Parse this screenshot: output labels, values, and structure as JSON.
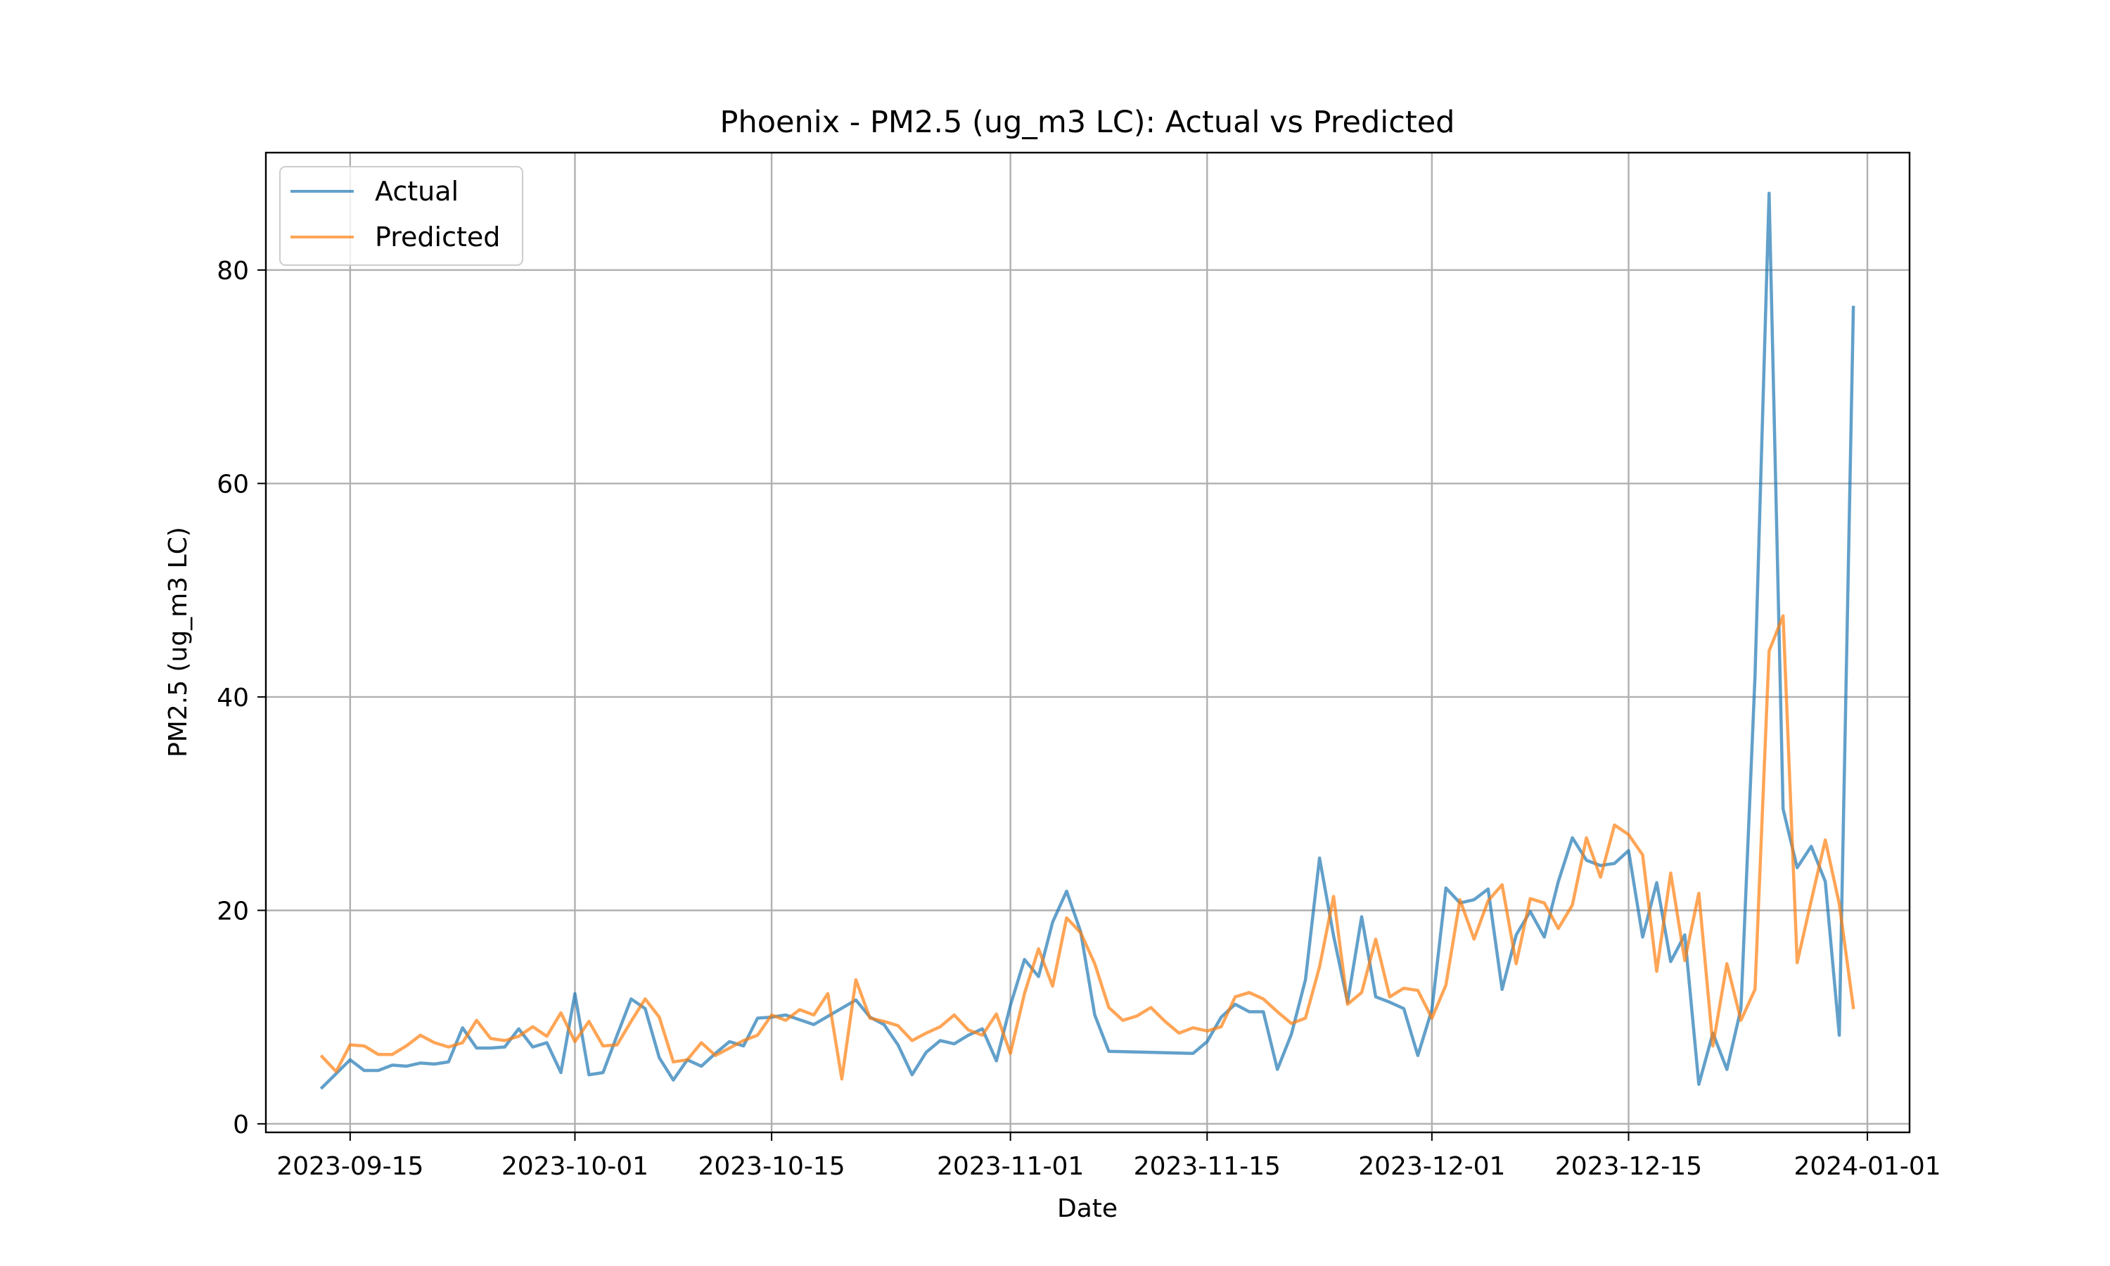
{
  "chart_data": {
    "type": "line",
    "title": "Phoenix - PM2.5 (ug_m3 LC): Actual vs Predicted",
    "xlabel": "Date",
    "ylabel": "PM2.5 (ug_m3 LC)",
    "xlim": [
      "2023-09-09",
      "2024-01-04"
    ],
    "ylim": [
      -0.8,
      91
    ],
    "x_ticks": [
      "2023-09-15",
      "2023-10-01",
      "2023-10-15",
      "2023-11-01",
      "2023-11-15",
      "2023-12-01",
      "2023-12-15",
      "2024-01-01"
    ],
    "y_ticks": [
      0,
      20,
      40,
      60,
      80
    ],
    "grid": true,
    "legend": "upper left",
    "series": [
      {
        "name": "Actual",
        "color": "#1f77b4",
        "points": [
          [
            "2023-09-13",
            3.4
          ],
          [
            "2023-09-14",
            4.7
          ],
          [
            "2023-09-15",
            6.0
          ],
          [
            "2023-09-16",
            5.0
          ],
          [
            "2023-09-17",
            5.0
          ],
          [
            "2023-09-18",
            5.5
          ],
          [
            "2023-09-19",
            5.4
          ],
          [
            "2023-09-20",
            5.7
          ],
          [
            "2023-09-21",
            5.6
          ],
          [
            "2023-09-22",
            5.8
          ],
          [
            "2023-09-23",
            9.0
          ],
          [
            "2023-09-24",
            7.1
          ],
          [
            "2023-09-25",
            7.1
          ],
          [
            "2023-09-26",
            7.2
          ],
          [
            "2023-09-27",
            8.9
          ],
          [
            "2023-09-28",
            7.2
          ],
          [
            "2023-09-29",
            7.6
          ],
          [
            "2023-09-30",
            4.8
          ],
          [
            "2023-10-01",
            12.2
          ],
          [
            "2023-10-02",
            4.6
          ],
          [
            "2023-10-03",
            4.8
          ],
          [
            "2023-10-04",
            8.3
          ],
          [
            "2023-10-05",
            11.7
          ],
          [
            "2023-10-06",
            10.8
          ],
          [
            "2023-10-07",
            6.2
          ],
          [
            "2023-10-08",
            4.1
          ],
          [
            "2023-10-09",
            6.0
          ],
          [
            "2023-10-10",
            5.4
          ],
          [
            "2023-10-11",
            6.6
          ],
          [
            "2023-10-12",
            7.7
          ],
          [
            "2023-10-13",
            7.3
          ],
          [
            "2023-10-14",
            9.9
          ],
          [
            "2023-10-15",
            10.0
          ],
          [
            "2023-10-16",
            10.2
          ],
          [
            "2023-10-18",
            9.3
          ],
          [
            "2023-10-21",
            11.6
          ],
          [
            "2023-10-22",
            10.0
          ],
          [
            "2023-10-23",
            9.3
          ],
          [
            "2023-10-24",
            7.4
          ],
          [
            "2023-10-25",
            4.6
          ],
          [
            "2023-10-26",
            6.7
          ],
          [
            "2023-10-27",
            7.8
          ],
          [
            "2023-10-28",
            7.5
          ],
          [
            "2023-10-29",
            8.3
          ],
          [
            "2023-10-30",
            8.9
          ],
          [
            "2023-10-31",
            5.9
          ],
          [
            "2023-11-01",
            11.1
          ],
          [
            "2023-11-02",
            15.4
          ],
          [
            "2023-11-03",
            13.8
          ],
          [
            "2023-11-04",
            18.9
          ],
          [
            "2023-11-05",
            21.8
          ],
          [
            "2023-11-06",
            18.0
          ],
          [
            "2023-11-07",
            10.2
          ],
          [
            "2023-11-08",
            6.8
          ],
          [
            "2023-11-14",
            6.6
          ],
          [
            "2023-11-15",
            7.7
          ],
          [
            "2023-11-16",
            10.0
          ],
          [
            "2023-11-17",
            11.2
          ],
          [
            "2023-11-18",
            10.5
          ],
          [
            "2023-11-19",
            10.5
          ],
          [
            "2023-11-20",
            5.1
          ],
          [
            "2023-11-21",
            8.4
          ],
          [
            "2023-11-22",
            13.5
          ],
          [
            "2023-11-23",
            24.9
          ],
          [
            "2023-11-24",
            17.6
          ],
          [
            "2023-11-25",
            11.4
          ],
          [
            "2023-11-26",
            19.4
          ],
          [
            "2023-11-27",
            11.9
          ],
          [
            "2023-11-28",
            11.4
          ],
          [
            "2023-11-29",
            10.8
          ],
          [
            "2023-11-30",
            6.4
          ],
          [
            "2023-12-01",
            10.7
          ],
          [
            "2023-12-02",
            22.1
          ],
          [
            "2023-12-03",
            20.7
          ],
          [
            "2023-12-04",
            21.0
          ],
          [
            "2023-12-05",
            22.0
          ],
          [
            "2023-12-06",
            12.6
          ],
          [
            "2023-12-07",
            17.7
          ],
          [
            "2023-12-08",
            19.9
          ],
          [
            "2023-12-09",
            17.5
          ],
          [
            "2023-12-10",
            22.7
          ],
          [
            "2023-12-11",
            26.8
          ],
          [
            "2023-12-12",
            24.7
          ],
          [
            "2023-12-13",
            24.2
          ],
          [
            "2023-12-14",
            24.4
          ],
          [
            "2023-12-15",
            25.6
          ],
          [
            "2023-12-16",
            17.5
          ],
          [
            "2023-12-17",
            22.6
          ],
          [
            "2023-12-18",
            15.2
          ],
          [
            "2023-12-19",
            17.7
          ],
          [
            "2023-12-20",
            3.7
          ],
          [
            "2023-12-21",
            8.5
          ],
          [
            "2023-12-22",
            5.1
          ],
          [
            "2023-12-23",
            10.8
          ],
          [
            "2023-12-24",
            42.0
          ],
          [
            "2023-12-25",
            87.2
          ],
          [
            "2023-12-26",
            29.5
          ],
          [
            "2023-12-27",
            24.0
          ],
          [
            "2023-12-28",
            26.0
          ],
          [
            "2023-12-29",
            22.7
          ],
          [
            "2023-12-30",
            8.3
          ],
          [
            "2023-12-31",
            76.5
          ]
        ]
      },
      {
        "name": "Predicted",
        "color": "#ff7f0e",
        "points": [
          [
            "2023-09-13",
            6.3
          ],
          [
            "2023-09-14",
            4.9
          ],
          [
            "2023-09-15",
            7.4
          ],
          [
            "2023-09-16",
            7.3
          ],
          [
            "2023-09-17",
            6.5
          ],
          [
            "2023-09-18",
            6.5
          ],
          [
            "2023-09-19",
            7.3
          ],
          [
            "2023-09-20",
            8.3
          ],
          [
            "2023-09-21",
            7.6
          ],
          [
            "2023-09-22",
            7.2
          ],
          [
            "2023-09-23",
            7.6
          ],
          [
            "2023-09-24",
            9.7
          ],
          [
            "2023-09-25",
            8.0
          ],
          [
            "2023-09-26",
            7.8
          ],
          [
            "2023-09-27",
            8.2
          ],
          [
            "2023-09-28",
            9.1
          ],
          [
            "2023-09-29",
            8.2
          ],
          [
            "2023-09-30",
            10.4
          ],
          [
            "2023-10-01",
            7.7
          ],
          [
            "2023-10-02",
            9.6
          ],
          [
            "2023-10-03",
            7.3
          ],
          [
            "2023-10-04",
            7.4
          ],
          [
            "2023-10-05",
            9.6
          ],
          [
            "2023-10-06",
            11.7
          ],
          [
            "2023-10-07",
            10.0
          ],
          [
            "2023-10-08",
            5.8
          ],
          [
            "2023-10-09",
            6.0
          ],
          [
            "2023-10-10",
            7.6
          ],
          [
            "2023-10-11",
            6.4
          ],
          [
            "2023-10-12",
            7.1
          ],
          [
            "2023-10-13",
            7.8
          ],
          [
            "2023-10-14",
            8.3
          ],
          [
            "2023-10-15",
            10.2
          ],
          [
            "2023-10-16",
            9.7
          ],
          [
            "2023-10-17",
            10.7
          ],
          [
            "2023-10-18",
            10.2
          ],
          [
            "2023-10-19",
            12.2
          ],
          [
            "2023-10-20",
            4.2
          ],
          [
            "2023-10-21",
            13.5
          ],
          [
            "2023-10-22",
            9.9
          ],
          [
            "2023-10-23",
            9.6
          ],
          [
            "2023-10-24",
            9.2
          ],
          [
            "2023-10-25",
            7.8
          ],
          [
            "2023-10-26",
            8.5
          ],
          [
            "2023-10-27",
            9.1
          ],
          [
            "2023-10-28",
            10.2
          ],
          [
            "2023-10-29",
            8.8
          ],
          [
            "2023-10-30",
            8.3
          ],
          [
            "2023-10-31",
            10.3
          ],
          [
            "2023-11-01",
            6.6
          ],
          [
            "2023-11-02",
            12.2
          ],
          [
            "2023-11-03",
            16.4
          ],
          [
            "2023-11-04",
            12.9
          ],
          [
            "2023-11-05",
            19.3
          ],
          [
            "2023-11-06",
            17.9
          ],
          [
            "2023-11-07",
            15.0
          ],
          [
            "2023-11-08",
            10.9
          ],
          [
            "2023-11-09",
            9.7
          ],
          [
            "2023-11-10",
            10.1
          ],
          [
            "2023-11-11",
            10.9
          ],
          [
            "2023-11-12",
            9.6
          ],
          [
            "2023-11-13",
            8.5
          ],
          [
            "2023-11-14",
            9.0
          ],
          [
            "2023-11-15",
            8.7
          ],
          [
            "2023-11-16",
            9.1
          ],
          [
            "2023-11-17",
            11.9
          ],
          [
            "2023-11-18",
            12.3
          ],
          [
            "2023-11-19",
            11.7
          ],
          [
            "2023-11-20",
            10.5
          ],
          [
            "2023-11-21",
            9.4
          ],
          [
            "2023-11-22",
            9.9
          ],
          [
            "2023-11-23",
            14.7
          ],
          [
            "2023-11-24",
            21.3
          ],
          [
            "2023-11-25",
            11.2
          ],
          [
            "2023-11-26",
            12.3
          ],
          [
            "2023-11-27",
            17.3
          ],
          [
            "2023-11-28",
            11.9
          ],
          [
            "2023-11-29",
            12.7
          ],
          [
            "2023-11-30",
            12.5
          ],
          [
            "2023-12-01",
            9.9
          ],
          [
            "2023-12-02",
            13.0
          ],
          [
            "2023-12-03",
            21.0
          ],
          [
            "2023-12-04",
            17.3
          ],
          [
            "2023-12-05",
            20.9
          ],
          [
            "2023-12-06",
            22.4
          ],
          [
            "2023-12-07",
            15.0
          ],
          [
            "2023-12-08",
            21.1
          ],
          [
            "2023-12-09",
            20.7
          ],
          [
            "2023-12-10",
            18.3
          ],
          [
            "2023-12-11",
            20.5
          ],
          [
            "2023-12-12",
            26.8
          ],
          [
            "2023-12-13",
            23.1
          ],
          [
            "2023-12-14",
            28.0
          ],
          [
            "2023-12-15",
            27.1
          ],
          [
            "2023-12-16",
            25.2
          ],
          [
            "2023-12-17",
            14.3
          ],
          [
            "2023-12-18",
            23.5
          ],
          [
            "2023-12-19",
            15.3
          ],
          [
            "2023-12-20",
            21.6
          ],
          [
            "2023-12-21",
            7.3
          ],
          [
            "2023-12-22",
            15.0
          ],
          [
            "2023-12-23",
            9.7
          ],
          [
            "2023-12-24",
            12.6
          ],
          [
            "2023-12-25",
            44.3
          ],
          [
            "2023-12-26",
            47.6
          ],
          [
            "2023-12-27",
            15.1
          ],
          [
            "2023-12-28",
            20.9
          ],
          [
            "2023-12-29",
            26.6
          ],
          [
            "2023-12-30",
            20.6
          ],
          [
            "2023-12-31",
            10.9
          ]
        ]
      }
    ]
  }
}
